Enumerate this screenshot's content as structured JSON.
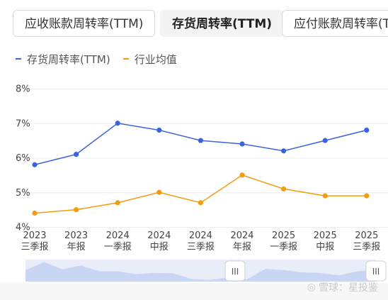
{
  "tabs": [
    {
      "label": "应收账款周转率(TTM)"
    },
    {
      "label": "存货周转率(TTM)"
    },
    {
      "label": "应付账款周转率(T"
    }
  ],
  "legend": {
    "series1": "存货周转率(TTM)",
    "series2": "行业均值"
  },
  "colors": {
    "series1": "#3d63dd",
    "series2": "#f39c12"
  },
  "watermark": "雪球：星投鉴",
  "chart_data": {
    "type": "line",
    "categories": [
      [
        "2023",
        "三季报"
      ],
      [
        "2023",
        "年报"
      ],
      [
        "2024",
        "一季报"
      ],
      [
        "2024",
        "中报"
      ],
      [
        "2024",
        "三季报"
      ],
      [
        "2024",
        "年报"
      ],
      [
        "2025",
        "一季报"
      ],
      [
        "2025",
        "中报"
      ],
      [
        "2025",
        "三季报"
      ]
    ],
    "yticks": [
      "8%",
      "7%",
      "6%",
      "5%",
      "4%"
    ],
    "ylim": [
      4,
      8
    ],
    "series": [
      {
        "name": "存货周转率(TTM)",
        "values": [
          5.8,
          6.1,
          7.0,
          6.8,
          6.5,
          6.4,
          6.2,
          6.5,
          6.8
        ]
      },
      {
        "name": "行业均值",
        "values": [
          4.4,
          4.5,
          4.7,
          5.0,
          4.7,
          5.5,
          5.1,
          4.9,
          4.9
        ]
      }
    ],
    "grid": true,
    "legend_position": "top-left"
  },
  "slider": {
    "handle_left": "III",
    "handle_right": "III"
  }
}
